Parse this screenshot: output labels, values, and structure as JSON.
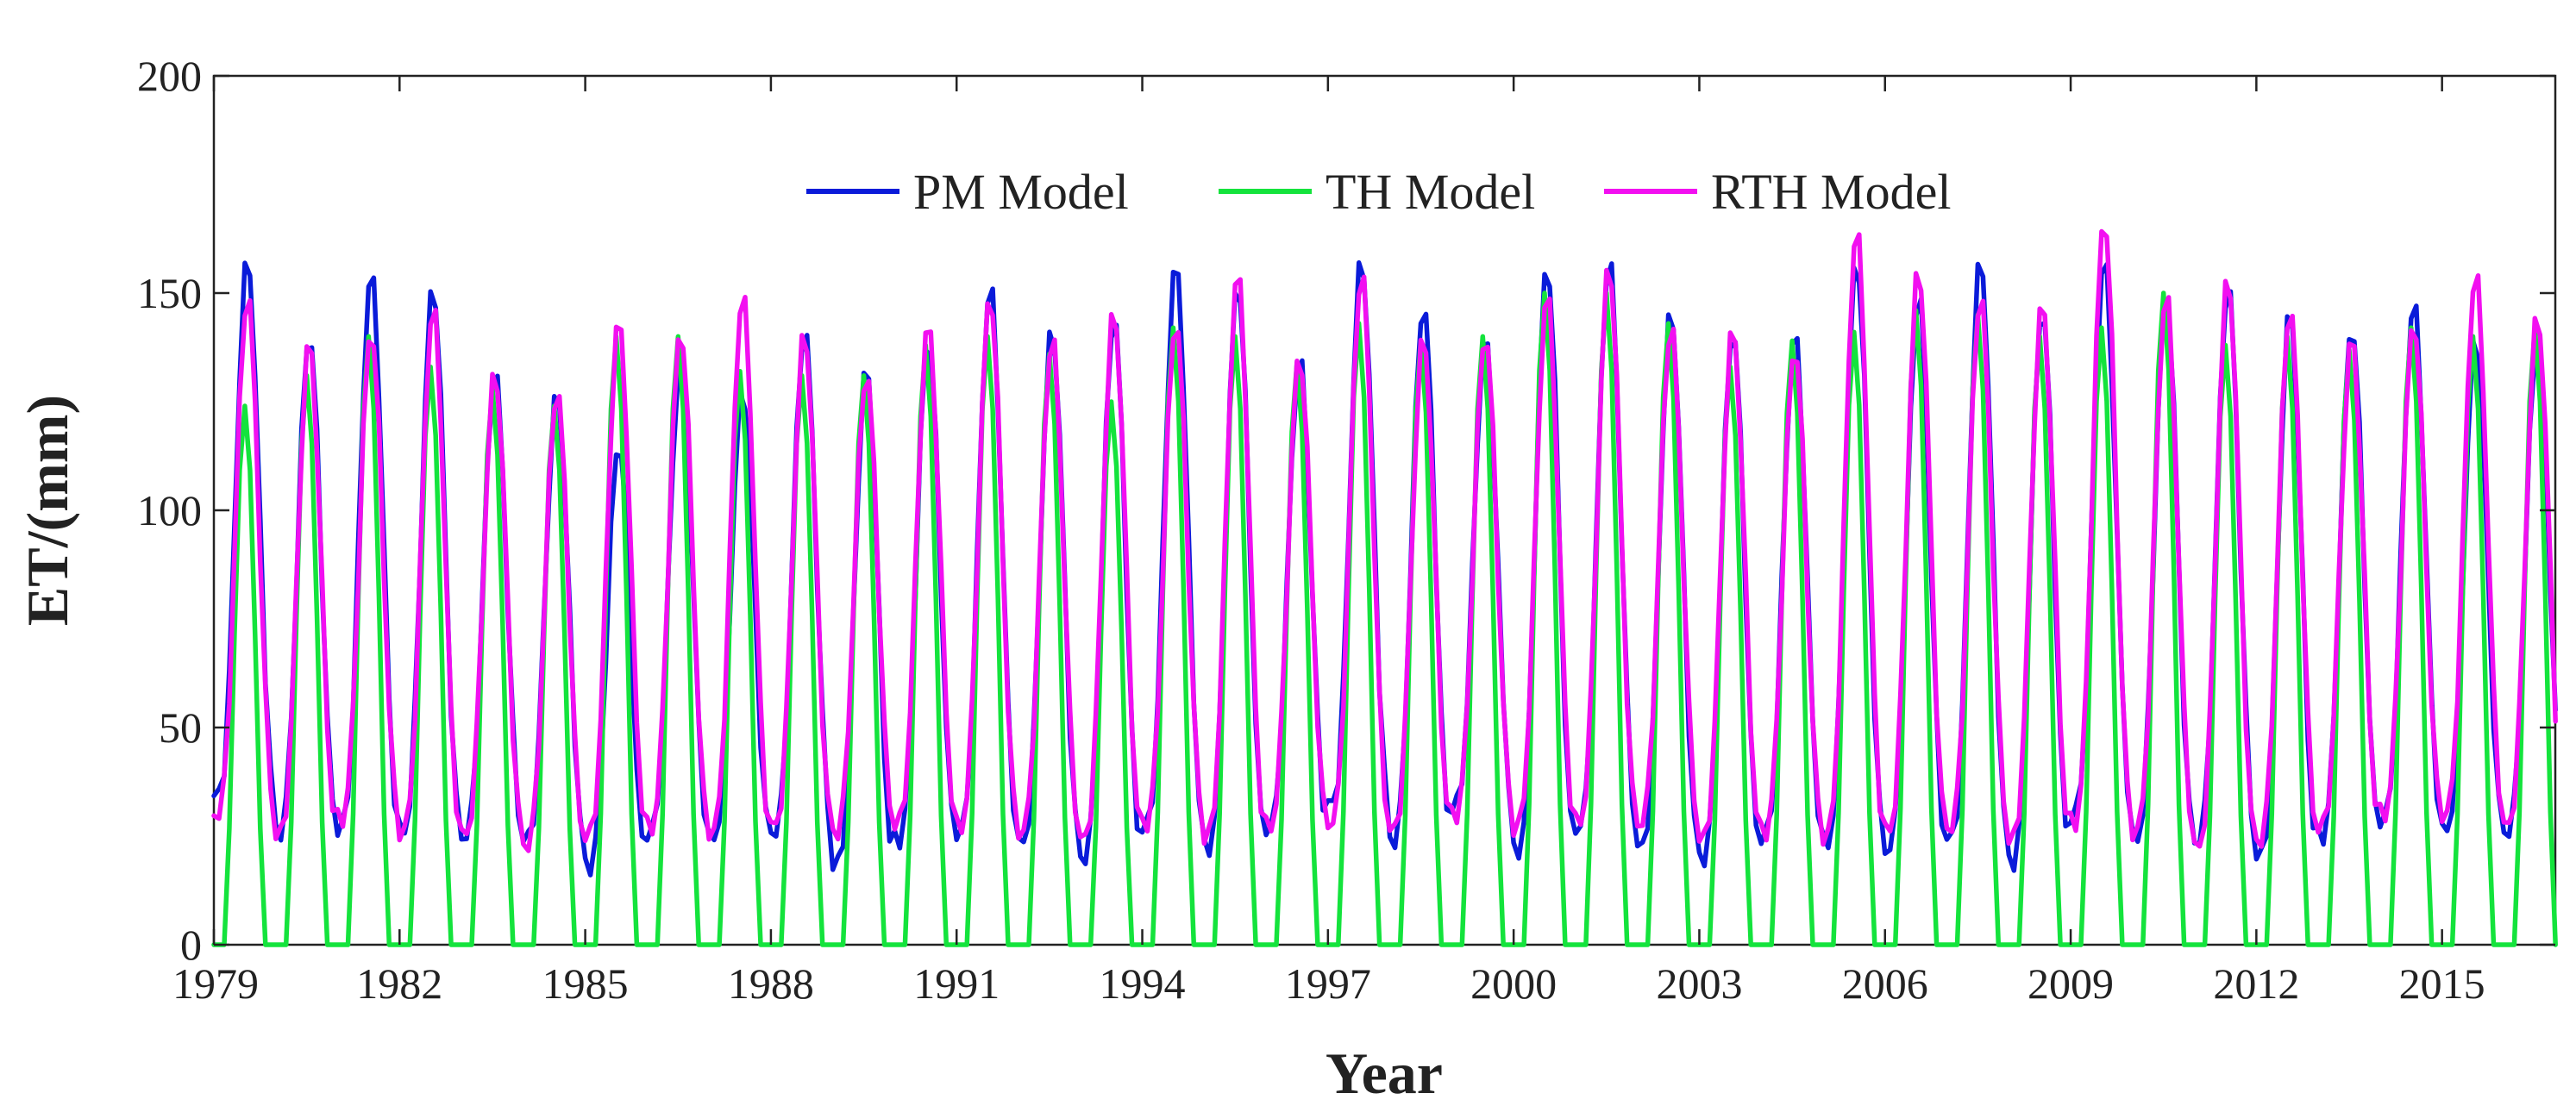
{
  "chart_data": {
    "type": "line",
    "title": "",
    "xlabel": "Year",
    "ylabel": "ET/(mm)",
    "xlim": [
      1979,
      2016.83
    ],
    "ylim": [
      0,
      200
    ],
    "grid": false,
    "legend_position": "top-center",
    "x_ticks": [
      "1979",
      "1982",
      "1985",
      "1988",
      "1991",
      "1994",
      "1997",
      "2000",
      "2003",
      "2006",
      "2009",
      "2012",
      "2015"
    ],
    "y_ticks": [
      "0",
      "50",
      "100",
      "150",
      "200"
    ],
    "x_step": "monthly (x = 1979 + month_index/12)",
    "colors": {
      "PM Model": "#0a1bd9",
      "TH Model": "#14e33c",
      "RTH Model": "#f20ff0"
    },
    "series": [
      {
        "name": "PM Model",
        "color": "#0a1bd9",
        "annual_peaks": [
          158,
          141,
          155,
          152,
          132,
          127,
          116,
          135,
          128,
          142,
          133,
          140,
          152,
          142,
          145,
          157,
          153,
          135,
          158,
          148,
          140,
          157,
          158,
          146,
          142,
          141,
          158,
          150,
          158,
          147,
          158,
          150,
          152,
          146,
          143,
          148,
          140,
          141
        ],
        "annual_minimums": [
          34,
          26,
          27,
          26,
          25,
          24,
          18,
          26,
          24,
          26,
          18,
          24,
          26,
          23,
          20,
          27,
          22,
          27,
          32,
          24,
          32,
          21,
          27,
          22,
          20,
          25,
          23,
          22,
          24,
          19,
          30,
          24,
          24,
          20,
          25,
          29,
          26,
          26
        ]
      },
      {
        "name": "TH Model",
        "color": "#14e33c",
        "annual_peaks": [
          124,
          131,
          140,
          133,
          128,
          124,
          140,
          140,
          132,
          131,
          131,
          138,
          140,
          136,
          125,
          142,
          140,
          134,
          143,
          139,
          140,
          150,
          150,
          143,
          133,
          139,
          141,
          146,
          145,
          140,
          142,
          150,
          138,
          140,
          137,
          142,
          140,
          142
        ],
        "annual_minimums": [
          0,
          0,
          0,
          0,
          0,
          0,
          0,
          0,
          0,
          0,
          0,
          0,
          0,
          0,
          0,
          0,
          0,
          0,
          0,
          0,
          0,
          0,
          0,
          0,
          0,
          0,
          0,
          0,
          0,
          0,
          0,
          0,
          0,
          0,
          0,
          0,
          0,
          0
        ]
      },
      {
        "name": "RTH Model",
        "color": "#f20ff0",
        "annual_peaks": [
          150,
          139,
          142,
          147,
          132,
          128,
          144,
          142,
          150,
          141,
          132,
          143,
          150,
          140,
          146,
          144,
          155,
          136,
          155,
          140,
          141,
          150,
          157,
          143,
          142,
          138,
          165,
          156,
          150,
          148,
          168,
          150,
          154,
          147,
          140,
          144,
          155,
          145
        ],
        "annual_minimums": [
          30,
          25,
          29,
          26,
          25,
          23,
          25,
          27,
          26,
          27,
          26,
          28,
          27,
          26,
          24,
          28,
          25,
          27,
          28,
          26,
          30,
          27,
          28,
          28,
          24,
          26,
          25,
          26,
          27,
          24,
          28,
          26,
          22,
          24,
          27,
          30,
          30,
          27
        ]
      }
    ]
  }
}
